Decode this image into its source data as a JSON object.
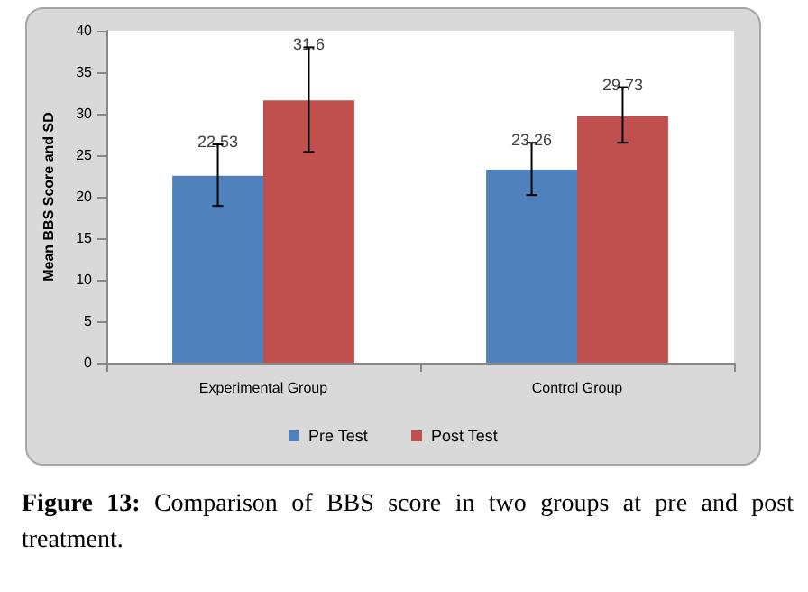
{
  "chart_data": {
    "type": "bar",
    "ylabel": "Mean BBS Score and SD",
    "categories": [
      "Experimental Group",
      "Control Group"
    ],
    "series": [
      {
        "name": "Pre Test",
        "color": "#4f81bd",
        "values": [
          22.53,
          23.26
        ],
        "errors": [
          [
            18.9,
            26.3
          ],
          [
            20.2,
            26.5
          ]
        ]
      },
      {
        "name": "Post Test",
        "color": "#c0504d",
        "values": [
          31.6,
          29.73
        ],
        "errors": [
          [
            25.4,
            38.0
          ],
          [
            26.5,
            33.2
          ]
        ]
      }
    ],
    "ylim": [
      0,
      40
    ],
    "yticks": [
      0,
      5,
      10,
      15,
      20,
      25,
      30,
      35,
      40
    ],
    "grid": false,
    "legend": "bottom",
    "data_labels": true,
    "annotations": [
      "Figure 13: Comparison of BBS score in two groups at pre and post treatment."
    ]
  }
}
